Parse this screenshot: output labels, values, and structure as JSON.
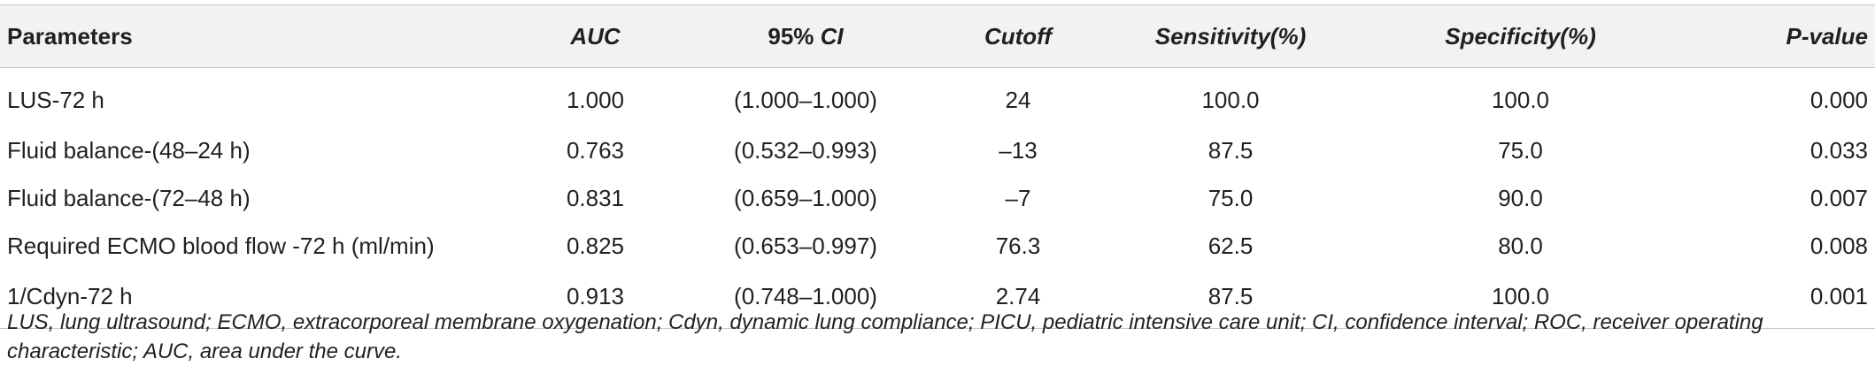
{
  "table": {
    "headers": {
      "parameters": "Parameters",
      "auc": "AUC",
      "ci_prefix": "95% ",
      "ci_suffix": "CI",
      "cutoff": "Cutoff",
      "sensitivity": "Sensitivity(%)",
      "specificity": "Specificity(%)",
      "p_value": "P-value"
    },
    "rows": [
      {
        "parameter": "LUS-72 h",
        "auc": "1.000",
        "ci": "(1.000–1.000)",
        "cutoff": "24",
        "sensitivity": "100.0",
        "specificity": "100.0",
        "p_value": "0.000"
      },
      {
        "parameter": "Fluid balance-(48–24 h)",
        "auc": "0.763",
        "ci": "(0.532–0.993)",
        "cutoff": "–13",
        "sensitivity": "87.5",
        "specificity": "75.0",
        "p_value": "0.033"
      },
      {
        "parameter": "Fluid balance-(72–48 h)",
        "auc": "0.831",
        "ci": "(0.659–1.000)",
        "cutoff": "–7",
        "sensitivity": "75.0",
        "specificity": "90.0",
        "p_value": "0.007"
      },
      {
        "parameter": "Required ECMO blood flow -72 h (ml/min)",
        "auc": "0.825",
        "ci": "(0.653–0.997)",
        "cutoff": "76.3",
        "sensitivity": "62.5",
        "specificity": "80.0",
        "p_value": "0.008"
      },
      {
        "parameter": "1/Cdyn-72 h",
        "auc": "0.913",
        "ci": "(0.748–1.000)",
        "cutoff": "2.74",
        "sensitivity": "87.5",
        "specificity": "100.0",
        "p_value": "0.001"
      }
    ]
  },
  "footnote": "LUS, lung ultrasound; ECMO, extracorporeal membrane oxygenation; Cdyn, dynamic lung compliance; PICU, pediatric intensive care unit; CI, confidence interval; ROC, receiver operating characteristic; AUC, area under the curve.",
  "colors": {
    "header_bg": "#f2f2f2",
    "rule": "#c8c8c8",
    "text": "#231f20"
  }
}
